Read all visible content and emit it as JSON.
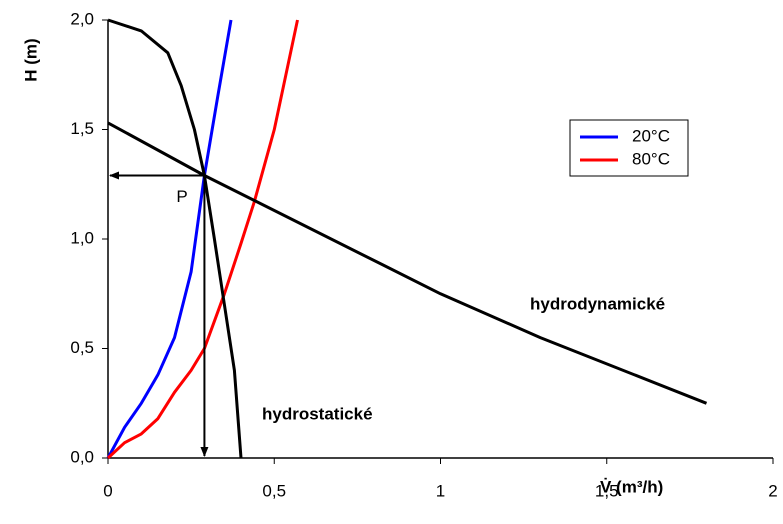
{
  "chart_data": {
    "type": "line",
    "xlabel": "V̇ (m³/h)",
    "ylabel": "H (m)",
    "xlim": [
      0,
      2
    ],
    "ylim": [
      0,
      2
    ],
    "xticks": [
      0,
      {
        "value": 0.5,
        "label": "0,5"
      },
      1,
      {
        "value": 1.5,
        "label": "1,5"
      },
      2
    ],
    "yticks": [
      {
        "value": 0,
        "label": "0,0"
      },
      {
        "value": 0.5,
        "label": "0,5"
      },
      {
        "value": 1,
        "label": "1,0"
      },
      {
        "value": 1.5,
        "label": "1,5"
      },
      {
        "value": 2,
        "label": "2,0"
      }
    ],
    "grid": false,
    "legend": "upper right",
    "series": [
      {
        "name": "20°C",
        "color": "#0000ff",
        "legend": true,
        "x": [
          0,
          0.05,
          0.1,
          0.15,
          0.2,
          0.25,
          0.29,
          0.33,
          0.37
        ],
        "values": [
          0,
          0.14,
          0.25,
          0.38,
          0.55,
          0.85,
          1.29,
          1.65,
          2.0
        ]
      },
      {
        "name": "80°C",
        "color": "#ff0000",
        "legend": true,
        "x": [
          0,
          0.05,
          0.1,
          0.15,
          0.2,
          0.25,
          0.29,
          0.35,
          0.4,
          0.44,
          0.5,
          0.57
        ],
        "values": [
          0,
          0.07,
          0.11,
          0.18,
          0.3,
          0.4,
          0.5,
          0.75,
          0.98,
          1.17,
          1.5,
          2.0
        ]
      },
      {
        "name": "hydrostatické",
        "color": "#000000",
        "legend": false,
        "x": [
          0,
          0.1,
          0.18,
          0.22,
          0.26,
          0.29,
          0.32,
          0.35,
          0.38,
          0.39,
          0.4
        ],
        "values": [
          2.0,
          1.95,
          1.85,
          1.7,
          1.5,
          1.29,
          1.0,
          0.7,
          0.4,
          0.2,
          0
        ]
      },
      {
        "name": "hydrodynamické",
        "color": "#000000",
        "legend": false,
        "x": [
          0,
          0.29,
          1,
          1.3,
          1.8
        ],
        "values": [
          1.53,
          1.29,
          0.75,
          0.55,
          0.25
        ]
      }
    ],
    "point": {
      "label": "P",
      "x": 0.29,
      "y": 1.29
    }
  }
}
